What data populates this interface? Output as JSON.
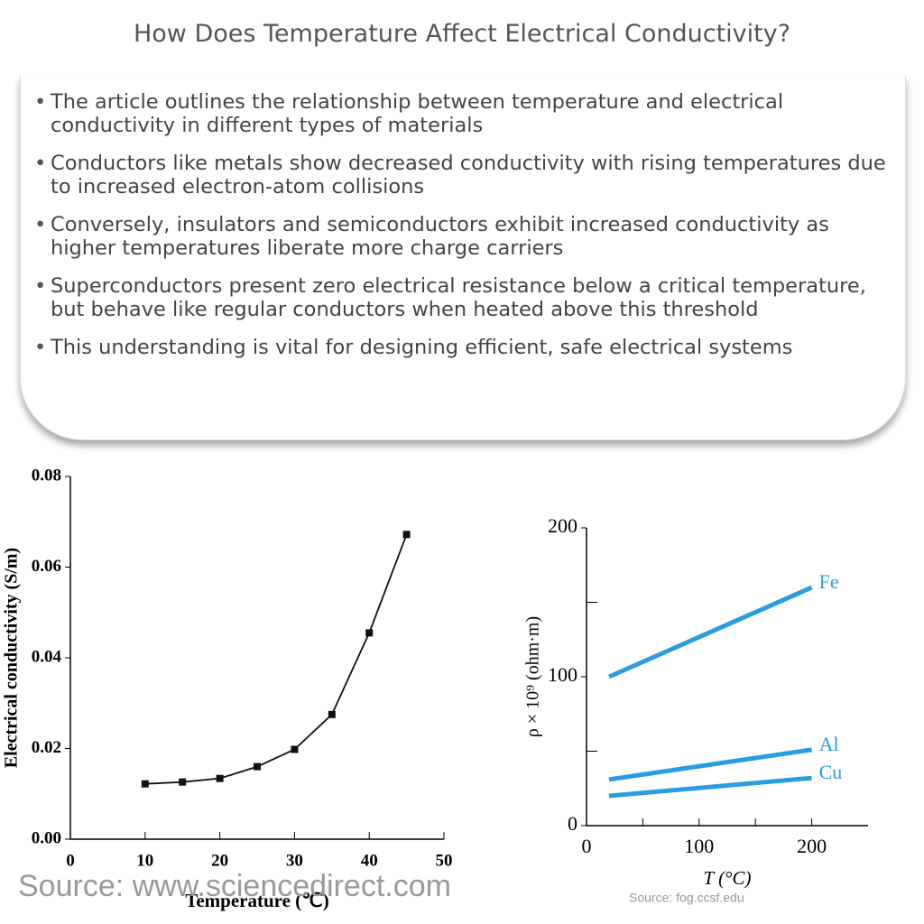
{
  "header": {
    "title": "How Does Temperature Affect Electrical Conductivity?"
  },
  "bullets": [
    "The article outlines the relationship between temperature and electrical conductivity in different types of materials",
    "Conductors like metals show decreased conductivity with rising temperatures due to increased electron-atom collisions",
    "Conversely, insulators and semiconductors exhibit increased conductivity as higher temperatures liberate more charge carriers",
    "Superconductors present zero electrical resistance below a critical temperature, but behave like regular conductors when heated above this threshold",
    "This understanding is vital for designing efficient, safe electrical systems"
  ],
  "chart_data": [
    {
      "type": "line",
      "x_label": "Temperature (℃)",
      "y_label": "Electrical conductivity (S/m)",
      "x": [
        10,
        15,
        20,
        25,
        30,
        35,
        40,
        45
      ],
      "values": [
        0.0122,
        0.0126,
        0.0134,
        0.016,
        0.0198,
        0.0275,
        0.0455,
        0.0672
      ],
      "color": "#111111",
      "markers": true,
      "xlim": [
        0,
        50
      ],
      "xticks": [
        0,
        10,
        20,
        30,
        40,
        50
      ],
      "ylim": [
        0,
        0.08
      ],
      "yticks": [
        {
          "value": 0,
          "label": "0.00"
        },
        {
          "value": 0.02,
          "label": "0.02"
        },
        {
          "value": 0.04,
          "label": "0.04"
        },
        {
          "value": 0.06,
          "label": "0.06"
        },
        {
          "value": 0.08,
          "label": "0.08"
        }
      ],
      "source": "Source: www.sciencedirect.com"
    },
    {
      "type": "line",
      "x_label": "T (°C)",
      "y_label": "ρ × 10⁹ (ohm·m)",
      "x": [
        20,
        200
      ],
      "series": [
        {
          "name": "Fe",
          "color": "#2a9de0",
          "values": [
            100,
            160
          ]
        },
        {
          "name": "Al",
          "color": "#2a9de0",
          "values": [
            31,
            51
          ]
        },
        {
          "name": "Cu",
          "color": "#2a9de0",
          "values": [
            20,
            32
          ]
        }
      ],
      "markers": false,
      "xlim": [
        0,
        250
      ],
      "xticks": [
        0,
        100,
        200
      ],
      "xminorticks": [
        50,
        150
      ],
      "ylim": [
        0,
        200
      ],
      "yticks": [
        0,
        100,
        200
      ],
      "yminorticks": [
        50,
        150
      ],
      "source": "Source: fog.ccsf.edu"
    }
  ]
}
